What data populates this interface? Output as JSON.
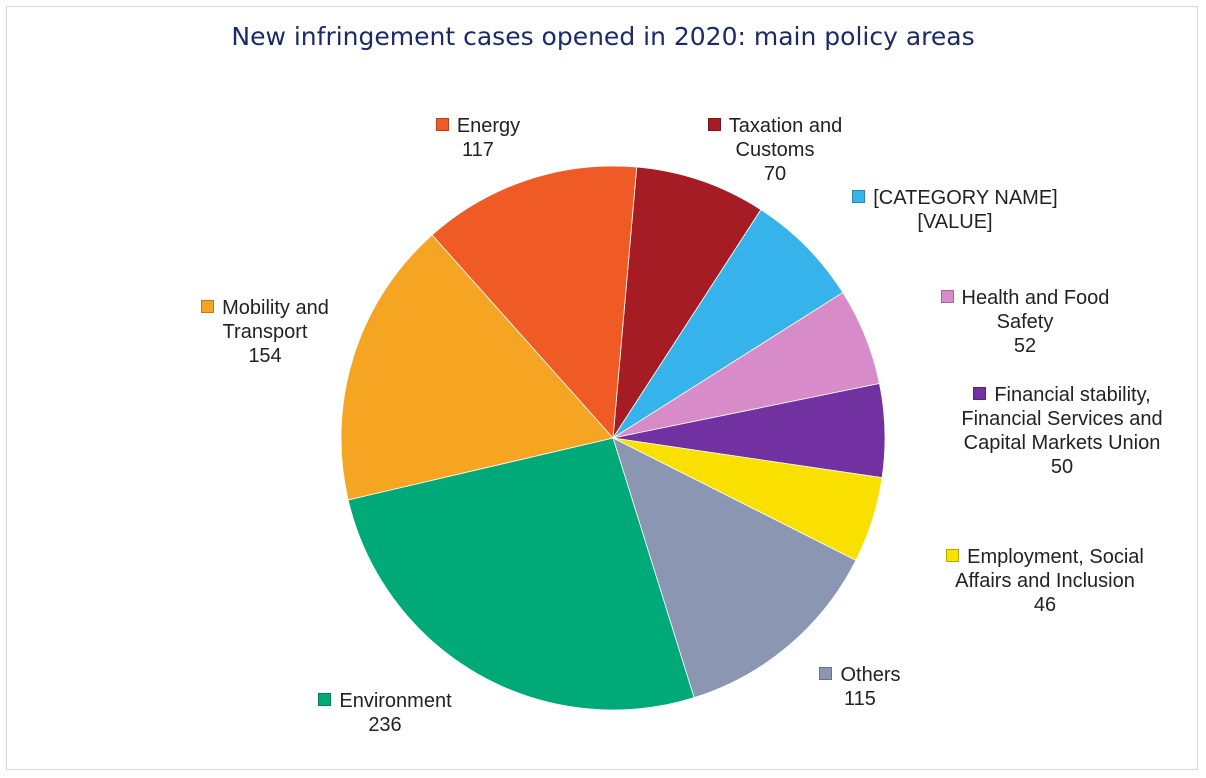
{
  "chart_data": {
    "type": "pie",
    "title": "New infringement cases opened in 2020: main policy areas",
    "categories": [
      "Taxation and Customs",
      "[CATEGORY NAME]",
      "Health and Food Safety",
      "Financial stability, Financial Services and Capital Markets Union",
      "Employment, Social Affairs and Inclusion",
      "Others",
      "Environment",
      "Mobility and Transport",
      "Energy"
    ],
    "values": [
      70,
      62,
      52,
      50,
      46,
      115,
      236,
      154,
      117
    ],
    "value_labels": [
      "70",
      "[VALUE]",
      "52",
      "50",
      "46",
      "115",
      "236",
      "154",
      "117"
    ],
    "colors": [
      "#a51c24",
      "#36b3ea",
      "#d78cc9",
      "#7131a0",
      "#f9e000",
      "#8b97b2",
      "#00aa78",
      "#f6a522",
      "#ef5a25"
    ]
  }
}
